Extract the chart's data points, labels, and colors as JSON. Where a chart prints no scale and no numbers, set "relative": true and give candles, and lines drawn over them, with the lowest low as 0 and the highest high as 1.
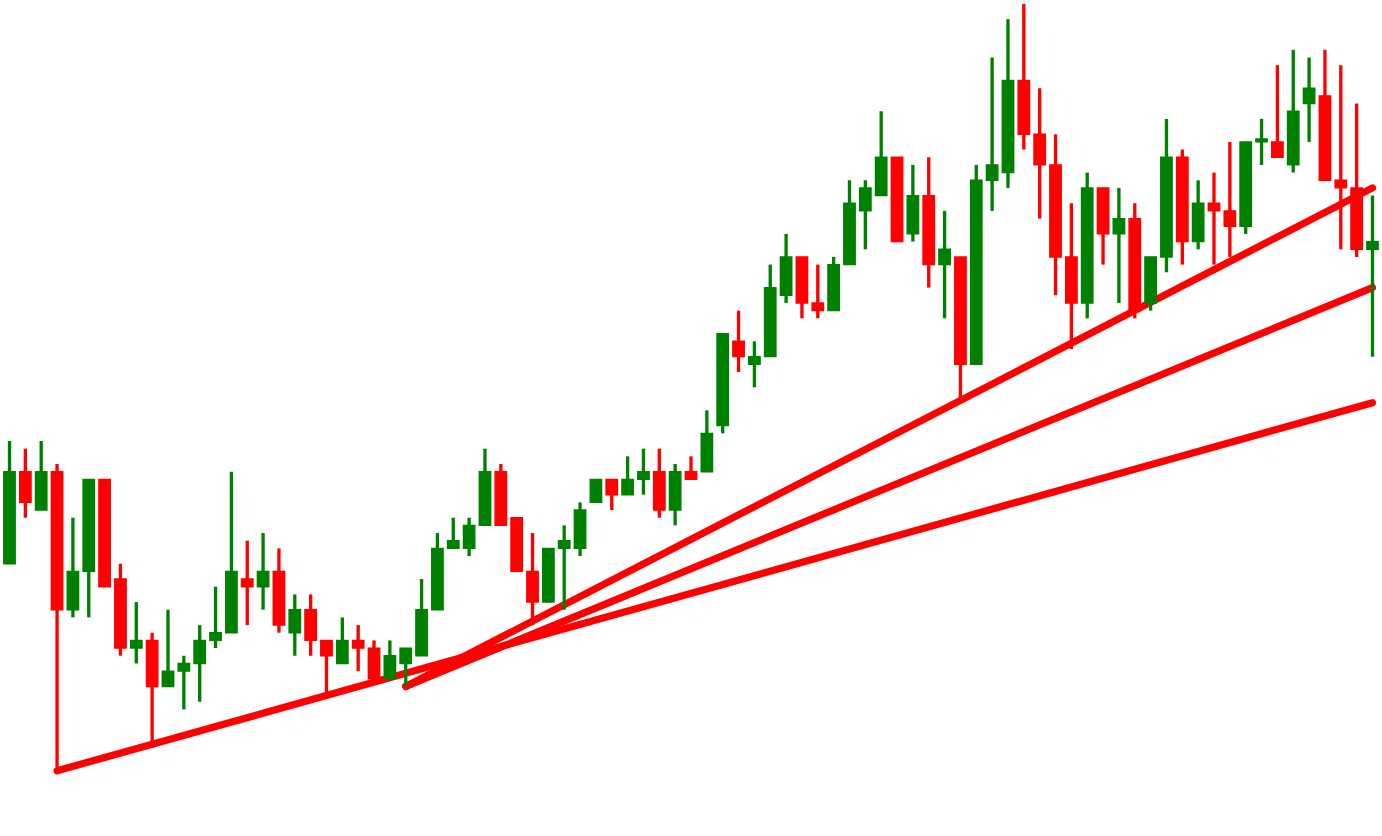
{
  "chart_data": {
    "type": "candlestick",
    "relative": true,
    "categories": [
      null,
      null,
      null,
      null,
      null,
      null,
      null,
      null,
      null,
      null,
      null,
      null,
      null,
      null,
      null,
      null,
      null,
      null,
      null,
      null,
      null,
      null,
      null,
      null,
      null,
      null,
      null,
      null,
      null,
      null,
      null,
      null,
      null,
      null,
      null,
      null,
      null,
      null,
      null,
      null,
      null,
      null,
      null,
      null,
      null,
      null,
      null,
      null,
      null,
      null,
      null,
      null,
      null,
      null,
      null,
      null,
      null,
      null,
      null,
      null,
      null,
      null,
      null,
      null,
      null,
      null,
      null,
      null,
      null,
      null,
      null,
      null,
      null,
      null,
      null,
      null,
      null,
      null,
      null,
      null,
      null,
      null,
      null,
      null,
      null,
      null,
      null
    ],
    "ohlc": [
      [
        0.27,
        0.43,
        0.27,
        0.39
      ],
      [
        0.39,
        0.42,
        0.33,
        0.35
      ],
      [
        0.34,
        0.43,
        0.34,
        0.39
      ],
      [
        0.39,
        0.4,
        0,
        0.21
      ],
      [
        0.21,
        0.33,
        0.2,
        0.26
      ],
      [
        0.26,
        0.38,
        0.2,
        0.38
      ],
      [
        0.38,
        0.38,
        0.24,
        0.24
      ],
      [
        0.25,
        0.27,
        0.15,
        0.16
      ],
      [
        0.16,
        0.22,
        0.14,
        0.17
      ],
      [
        0.17,
        0.18,
        0.03,
        0.11
      ],
      [
        0.11,
        0.21,
        0.11,
        0.13
      ],
      [
        0.13,
        0.15,
        0.08,
        0.14
      ],
      [
        0.14,
        0.19,
        0.09,
        0.17
      ],
      [
        0.17,
        0.24,
        0.16,
        0.18
      ],
      [
        0.18,
        0.39,
        0.18,
        0.26
      ],
      [
        0.25,
        0.3,
        0.19,
        0.24
      ],
      [
        0.24,
        0.31,
        0.21,
        0.26
      ],
      [
        0.26,
        0.29,
        0.18,
        0.19
      ],
      [
        0.18,
        0.23,
        0.15,
        0.21
      ],
      [
        0.21,
        0.23,
        0.15,
        0.17
      ],
      [
        0.17,
        0.17,
        0.1,
        0.15
      ],
      [
        0.14,
        0.2,
        0.14,
        0.17
      ],
      [
        0.17,
        0.19,
        0.13,
        0.16
      ],
      [
        0.16,
        0.17,
        0.12,
        0.12
      ],
      [
        0.12,
        0.17,
        0.12,
        0.15
      ],
      [
        0.14,
        0.16,
        0.11,
        0.16
      ],
      [
        0.15,
        0.25,
        0.15,
        0.21
      ],
      [
        0.21,
        0.31,
        0.21,
        0.29
      ],
      [
        0.29,
        0.33,
        0.29,
        0.3
      ],
      [
        0.29,
        0.33,
        0.28,
        0.32
      ],
      [
        0.32,
        0.42,
        0.32,
        0.39
      ],
      [
        0.39,
        0.4,
        0.32,
        0.32
      ],
      [
        0.33,
        0.33,
        0.26,
        0.26
      ],
      [
        0.26,
        0.31,
        0.19,
        0.22
      ],
      [
        0.22,
        0.29,
        0.22,
        0.29
      ],
      [
        0.29,
        0.32,
        0.21,
        0.3
      ],
      [
        0.29,
        0.35,
        0.28,
        0.34
      ],
      [
        0.35,
        0.38,
        0.35,
        0.38
      ],
      [
        0.38,
        0.38,
        0.34,
        0.36
      ],
      [
        0.36,
        0.41,
        0.36,
        0.38
      ],
      [
        0.38,
        0.42,
        0.36,
        0.39
      ],
      [
        0.39,
        0.42,
        0.33,
        0.34
      ],
      [
        0.34,
        0.4,
        0.32,
        0.39
      ],
      [
        0.39,
        0.41,
        0.38,
        0.38
      ],
      [
        0.39,
        0.47,
        0.39,
        0.44
      ],
      [
        0.45,
        0.57,
        0.44,
        0.57
      ],
      [
        0.56,
        0.6,
        0.52,
        0.54
      ],
      [
        0.53,
        0.56,
        0.5,
        0.54
      ],
      [
        0.54,
        0.66,
        0.54,
        0.63
      ],
      [
        0.62,
        0.7,
        0.61,
        0.67
      ],
      [
        0.67,
        0.67,
        0.59,
        0.61
      ],
      [
        0.61,
        0.66,
        0.59,
        0.6
      ],
      [
        0.6,
        0.67,
        0.6,
        0.66
      ],
      [
        0.66,
        0.77,
        0.66,
        0.74
      ],
      [
        0.73,
        0.77,
        0.68,
        0.76
      ],
      [
        0.75,
        0.86,
        0.75,
        0.8
      ],
      [
        0.8,
        0.8,
        0.69,
        0.69
      ],
      [
        0.7,
        0.79,
        0.69,
        0.75
      ],
      [
        0.75,
        0.8,
        0.63,
        0.66
      ],
      [
        0.66,
        0.73,
        0.59,
        0.68
      ],
      [
        0.67,
        0.67,
        0.48,
        0.53
      ],
      [
        0.53,
        0.79,
        0.53,
        0.77
      ],
      [
        0.77,
        0.93,
        0.73,
        0.79
      ],
      [
        0.78,
        0.98,
        0.76,
        0.9
      ],
      [
        0.9,
        1,
        0.81,
        0.83
      ],
      [
        0.83,
        0.89,
        0.72,
        0.79
      ],
      [
        0.79,
        0.83,
        0.62,
        0.67
      ],
      [
        0.67,
        0.74,
        0.55,
        0.61
      ],
      [
        0.61,
        0.78,
        0.59,
        0.76
      ],
      [
        0.76,
        0.76,
        0.66,
        0.7
      ],
      [
        0.7,
        0.76,
        0.61,
        0.72
      ],
      [
        0.72,
        0.74,
        0.59,
        0.6
      ],
      [
        0.61,
        0.67,
        0.6,
        0.67
      ],
      [
        0.67,
        0.85,
        0.65,
        0.8
      ],
      [
        0.8,
        0.81,
        0.66,
        0.69
      ],
      [
        0.69,
        0.77,
        0.68,
        0.74
      ],
      [
        0.74,
        0.78,
        0.66,
        0.73
      ],
      [
        0.73,
        0.82,
        0.67,
        0.71
      ],
      [
        0.71,
        0.82,
        0.7,
        0.82
      ],
      [
        0.82,
        0.85,
        0.79,
        0.82
      ],
      [
        0.82,
        0.92,
        0.8,
        0.8
      ],
      [
        0.79,
        0.94,
        0.78,
        0.86
      ],
      [
        0.87,
        0.93,
        0.82,
        0.89
      ],
      [
        0.88,
        0.94,
        0.77,
        0.77
      ],
      [
        0.77,
        0.92,
        0.68,
        0.76
      ],
      [
        0.76,
        0.87,
        0.67,
        0.68
      ],
      [
        0.68,
        0.75,
        0.54,
        0.69
      ]
    ],
    "colors": [
      "#008000",
      "#ff0000",
      "#008000",
      "#ff0000",
      "#008000",
      "#008000",
      "#ff0000",
      "#ff0000",
      "#008000",
      "#ff0000",
      "#008000",
      "#008000",
      "#008000",
      "#008000",
      "#008000",
      "#ff0000",
      "#008000",
      "#ff0000",
      "#008000",
      "#ff0000",
      "#ff0000",
      "#008000",
      "#ff0000",
      "#ff0000",
      "#008000",
      "#008000",
      "#008000",
      "#008000",
      "#008000",
      "#008000",
      "#008000",
      "#ff0000",
      "#ff0000",
      "#ff0000",
      "#008000",
      "#008000",
      "#008000",
      "#008000",
      "#ff0000",
      "#008000",
      "#008000",
      "#ff0000",
      "#008000",
      "#ff0000",
      "#008000",
      "#008000",
      "#ff0000",
      "#008000",
      "#008000",
      "#008000",
      "#ff0000",
      "#ff0000",
      "#008000",
      "#008000",
      "#008000",
      "#008000",
      "#ff0000",
      "#008000",
      "#ff0000",
      "#008000",
      "#ff0000",
      "#008000",
      "#008000",
      "#008000",
      "#ff0000",
      "#ff0000",
      "#ff0000",
      "#ff0000",
      "#008000",
      "#ff0000",
      "#008000",
      "#ff0000",
      "#008000",
      "#008000",
      "#ff0000",
      "#008000",
      "#ff0000",
      "#ff0000",
      "#008000",
      "#008000",
      "#ff0000",
      "#008000",
      "#008000",
      "#ff0000",
      "#ff0000",
      "#ff0000",
      "#008000"
    ],
    "series": [
      {
        "type": "line",
        "color": "#ff0000",
        "values": [
          null,
          null,
          null,
          0,
          null,
          null,
          null,
          null,
          null,
          null,
          null,
          null,
          null,
          null,
          null,
          null,
          null,
          null,
          null,
          null,
          null,
          null,
          null,
          null,
          null,
          null,
          null,
          null,
          null,
          null,
          null,
          null,
          null,
          null,
          null,
          null,
          null,
          null,
          null,
          null,
          null,
          null,
          null,
          null,
          null,
          null,
          null,
          null,
          null,
          null,
          null,
          null,
          null,
          null,
          null,
          null,
          null,
          null,
          null,
          null,
          null,
          null,
          null,
          null,
          null,
          null,
          null,
          null,
          null,
          null,
          null,
          null,
          null,
          null,
          null,
          null,
          null,
          null,
          null,
          null,
          null,
          null,
          null,
          null,
          null,
          null,
          0.48
        ]
      },
      {
        "type": "line",
        "color": "#ff0000",
        "values": [
          null,
          null,
          null,
          null,
          null,
          null,
          null,
          null,
          null,
          null,
          null,
          null,
          null,
          null,
          null,
          null,
          null,
          null,
          null,
          null,
          null,
          null,
          null,
          null,
          null,
          0.11,
          null,
          null,
          null,
          null,
          null,
          null,
          null,
          null,
          null,
          null,
          null,
          null,
          null,
          null,
          null,
          null,
          null,
          null,
          null,
          null,
          null,
          null,
          null,
          null,
          null,
          null,
          null,
          null,
          null,
          null,
          null,
          null,
          null,
          null,
          null,
          null,
          null,
          null,
          null,
          null,
          null,
          null,
          null,
          null,
          null,
          null,
          null,
          null,
          null,
          null,
          null,
          null,
          null,
          null,
          null,
          null,
          null,
          null,
          null,
          null,
          0.63
        ]
      },
      {
        "type": "line",
        "color": "#ff0000",
        "values": [
          null,
          null,
          null,
          null,
          null,
          null,
          null,
          null,
          null,
          null,
          null,
          null,
          null,
          null,
          null,
          null,
          null,
          null,
          null,
          null,
          null,
          null,
          null,
          null,
          null,
          0.11,
          null,
          null,
          null,
          null,
          null,
          null,
          null,
          null,
          null,
          null,
          null,
          null,
          null,
          null,
          null,
          null,
          null,
          null,
          null,
          null,
          null,
          null,
          null,
          null,
          null,
          null,
          null,
          null,
          null,
          null,
          null,
          null,
          null,
          null,
          null,
          null,
          null,
          null,
          null,
          null,
          null,
          null,
          null,
          null,
          null,
          null,
          null,
          null,
          null,
          null,
          null,
          null,
          null,
          null,
          null,
          null,
          null,
          null,
          null,
          null,
          0.76
        ]
      }
    ]
  }
}
